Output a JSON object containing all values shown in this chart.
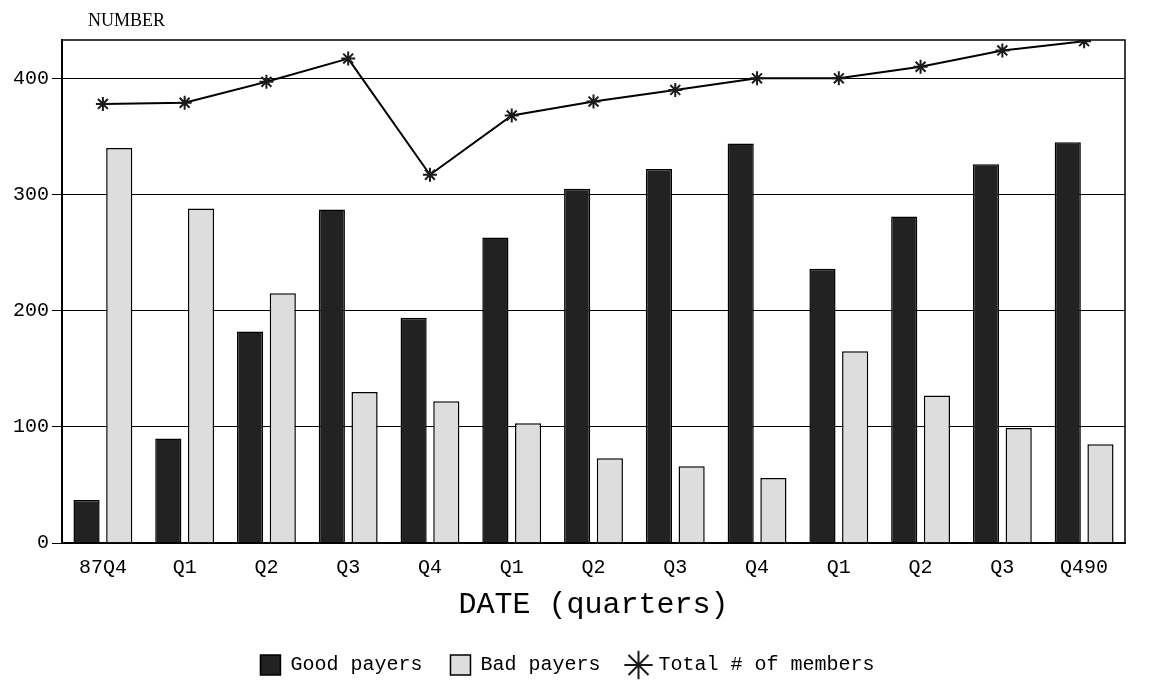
{
  "chart_data": {
    "type": "bar",
    "ylabel": "NUMBER",
    "xlabel": "DATE (quarters)",
    "categories": [
      "87Q4",
      "Q1",
      "Q2",
      "Q3",
      "Q4",
      "Q1",
      "Q2",
      "Q3",
      "Q4",
      "Q1",
      "Q2",
      "Q3",
      "Q490"
    ],
    "series": [
      {
        "name": "Good payers",
        "color": "#222222",
        "values": [
          37,
          90,
          182,
          287,
          194,
          263,
          305,
          322,
          344,
          236,
          281,
          326,
          345
        ]
      },
      {
        "name": "Bad payers",
        "color": "#dddddd",
        "values": [
          340,
          288,
          215,
          130,
          122,
          103,
          73,
          66,
          56,
          165,
          127,
          99,
          85
        ]
      },
      {
        "name": "Total # of members",
        "type": "line",
        "color": "#000000",
        "marker": "cross",
        "values": [
          378,
          379,
          397,
          417,
          317,
          368,
          380,
          390,
          400,
          400,
          410,
          424,
          432
        ]
      }
    ],
    "ylim": [
      0,
      433
    ],
    "yticks": [
      0,
      100,
      200,
      300,
      400
    ],
    "grid": "y",
    "legend": "bottom"
  }
}
